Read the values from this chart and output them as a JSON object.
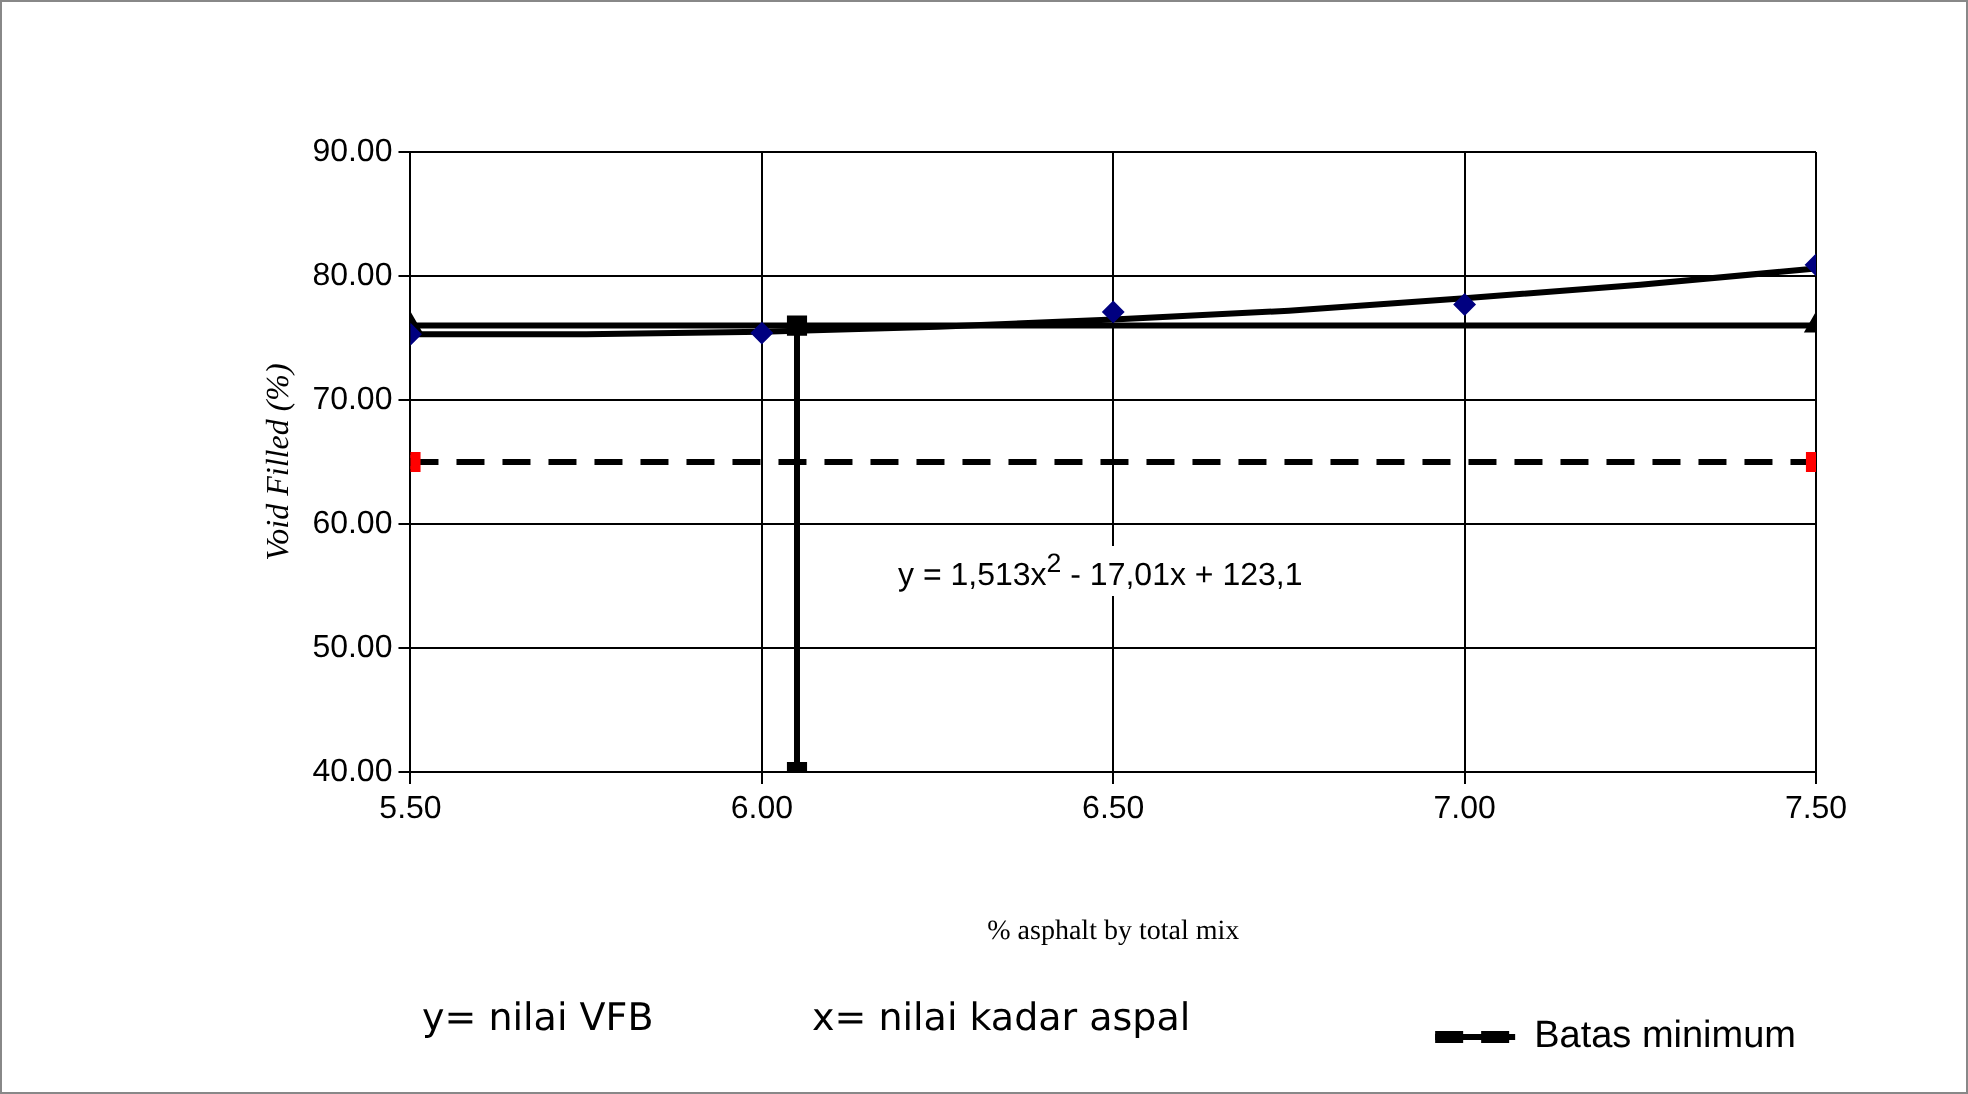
{
  "chart_data": {
    "type": "scatter",
    "xlabel": "% asphalt by total mix",
    "ylabel": "Void Filled (%)",
    "xlim": [
      5.5,
      7.5
    ],
    "xticks": [
      {
        "value": 5.5,
        "label": "5.50"
      },
      {
        "value": 6,
        "label": "6.00"
      },
      {
        "value": 6.5,
        "label": "6.50"
      },
      {
        "value": 7,
        "label": "7.00"
      },
      {
        "value": 7.5,
        "label": "7.50"
      }
    ],
    "ylim": [
      40,
      90
    ],
    "yticks": [
      {
        "value": 40,
        "label": "40.00"
      },
      {
        "value": 50,
        "label": "50.00"
      },
      {
        "value": 60,
        "label": "60.00"
      },
      {
        "value": 70,
        "label": "70.00"
      },
      {
        "value": 80,
        "label": "80.00"
      },
      {
        "value": 90,
        "label": "90.00"
      }
    ],
    "grid": true,
    "legend": "bottom right",
    "series": [
      {
        "type": "scatter",
        "marker": "diamond",
        "color": "#000080",
        "x": [
          5.5,
          6,
          6.5,
          7,
          7.5
        ],
        "values": [
          75.3,
          75.4,
          77.1,
          77.7,
          80.9
        ]
      },
      {
        "type": "line",
        "marker": "none",
        "color": "#000000",
        "x": [
          5.5,
          5.75,
          6,
          6.25,
          6.5,
          6.75,
          7,
          7.25,
          7.5
        ],
        "values": [
          75.3,
          75.3,
          75.5,
          75.9,
          76.5,
          77.2,
          78.2,
          79.3,
          80.6
        ]
      },
      {
        "type": "line",
        "marker": "triangle",
        "color": "#000000",
        "x": [
          5.5,
          7.5
        ],
        "values": [
          76,
          76
        ]
      },
      {
        "type": "line",
        "marker": "square",
        "color": "#000000",
        "x": [
          6.05,
          6.05
        ],
        "values": [
          40,
          76
        ]
      },
      {
        "type": "line",
        "name": "Batas minimum",
        "marker": "square",
        "line_style": "dashed",
        "color": "#000000",
        "colors": [
          "#ff0000",
          "#ff0000"
        ],
        "x": [
          5.5,
          7.5
        ],
        "values": [
          65,
          65
        ]
      }
    ],
    "annotations": [
      "y = 1,513x$^{2}$ - 17,01x + 123,1",
      "y= nilai VFB",
      "x= nilai kadar aspal"
    ]
  }
}
